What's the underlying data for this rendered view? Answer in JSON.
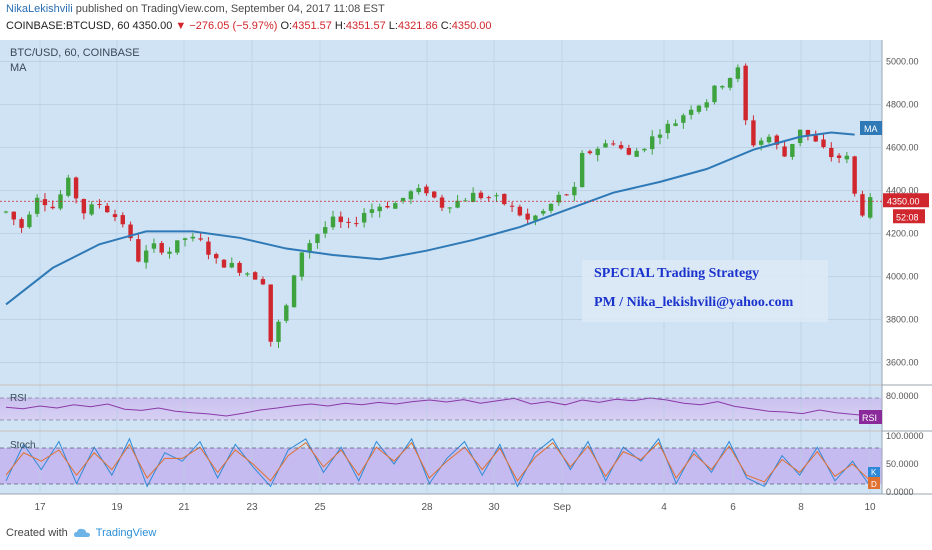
{
  "header": {
    "author": "NikaLekishvili",
    "published_text": "published on TradingView.com, September 04, 2017 11:08 EST",
    "symbol": "COINBASE:BTCUSD, 60",
    "last": "4350.00",
    "change": "−276.05 (−5.97%)",
    "o_label": "O:",
    "o": "4351.57",
    "h_label": "H:",
    "h": "4351.57",
    "l_label": "L:",
    "l": "4321.86",
    "c_label": "C:",
    "c": "4350.00"
  },
  "legend": {
    "symbol": "BTC/USD, 60, COINBASE",
    "ma": "MA"
  },
  "annotation": {
    "line1": "SPECIAL Trading Strategy",
    "line2": "PM / Nika_lekishvili@yahoo.com"
  },
  "badges": {
    "ma": "MA",
    "price": "4350.00",
    "timer": "52:08",
    "rsi": "RSI",
    "stoch_k": "K",
    "stoch_d": "D"
  },
  "footer": {
    "created": "Created with",
    "brand": "TradingView"
  },
  "colors": {
    "bg": "#cfe3f4",
    "up": "#3ea33e",
    "down": "#d0262d",
    "ma": "#2e79b6",
    "rsi": "#8a3aa8",
    "k": "#2e8ad8",
    "d": "#e07030"
  },
  "chart_data": [
    {
      "type": "candlestick",
      "title": "BTC/USD, 60, COINBASE",
      "ylim": [
        3500,
        5100
      ],
      "y_ticks": [
        3600,
        3800,
        4000,
        4200,
        4400,
        4600,
        4800,
        5000
      ],
      "y_tick_labels": [
        "3600.00",
        "3800.00",
        "4000.00",
        "4200.00",
        "4400.00",
        "4600.00",
        "4800.00",
        "5000.00"
      ],
      "x_ticks": [
        "17",
        "19",
        "21",
        "23",
        "25",
        "28",
        "30",
        "Sep",
        "4",
        "6",
        "8",
        "10"
      ],
      "last_price": 4350.0,
      "price_path": [
        {
          "x": 0,
          "y": 4300
        },
        {
          "x": 2,
          "y": 4230
        },
        {
          "x": 4,
          "y": 4380
        },
        {
          "x": 6,
          "y": 4320
        },
        {
          "x": 8,
          "y": 4440
        },
        {
          "x": 10,
          "y": 4300
        },
        {
          "x": 12,
          "y": 4340
        },
        {
          "x": 15,
          "y": 4250
        },
        {
          "x": 17,
          "y": 4080
        },
        {
          "x": 19,
          "y": 4140
        },
        {
          "x": 21,
          "y": 4120
        },
        {
          "x": 23,
          "y": 4180
        },
        {
          "x": 25,
          "y": 4160
        },
        {
          "x": 27,
          "y": 4070
        },
        {
          "x": 29,
          "y": 4050
        },
        {
          "x": 31,
          "y": 4020
        },
        {
          "x": 33,
          "y": 3980
        },
        {
          "x": 34,
          "y": 3700
        },
        {
          "x": 36,
          "y": 3860
        },
        {
          "x": 38,
          "y": 4120
        },
        {
          "x": 40,
          "y": 4200
        },
        {
          "x": 42,
          "y": 4260
        },
        {
          "x": 44,
          "y": 4230
        },
        {
          "x": 46,
          "y": 4300
        },
        {
          "x": 48,
          "y": 4330
        },
        {
          "x": 50,
          "y": 4340
        },
        {
          "x": 52,
          "y": 4390
        },
        {
          "x": 54,
          "y": 4400
        },
        {
          "x": 56,
          "y": 4330
        },
        {
          "x": 58,
          "y": 4350
        },
        {
          "x": 60,
          "y": 4380
        },
        {
          "x": 63,
          "y": 4360
        },
        {
          "x": 65,
          "y": 4320
        },
        {
          "x": 67,
          "y": 4260
        },
        {
          "x": 69,
          "y": 4300
        },
        {
          "x": 71,
          "y": 4370
        },
        {
          "x": 73,
          "y": 4400
        },
        {
          "x": 74,
          "y": 4560
        },
        {
          "x": 76,
          "y": 4600
        },
        {
          "x": 78,
          "y": 4630
        },
        {
          "x": 80,
          "y": 4560
        },
        {
          "x": 82,
          "y": 4610
        },
        {
          "x": 84,
          "y": 4680
        },
        {
          "x": 86,
          "y": 4720
        },
        {
          "x": 88,
          "y": 4790
        },
        {
          "x": 90,
          "y": 4820
        },
        {
          "x": 91,
          "y": 4870
        },
        {
          "x": 93,
          "y": 4930
        },
        {
          "x": 94,
          "y": 4960
        },
        {
          "x": 95,
          "y": 4720
        },
        {
          "x": 96,
          "y": 4620
        },
        {
          "x": 98,
          "y": 4650
        },
        {
          "x": 100,
          "y": 4560
        },
        {
          "x": 102,
          "y": 4690
        },
        {
          "x": 104,
          "y": 4620
        },
        {
          "x": 106,
          "y": 4560
        },
        {
          "x": 108,
          "y": 4550
        },
        {
          "x": 109,
          "y": 4380
        },
        {
          "x": 110,
          "y": 4300
        },
        {
          "x": 111,
          "y": 4350
        }
      ],
      "ma_path": [
        {
          "x": 0,
          "y": 3870
        },
        {
          "x": 6,
          "y": 4040
        },
        {
          "x": 12,
          "y": 4150
        },
        {
          "x": 18,
          "y": 4210
        },
        {
          "x": 24,
          "y": 4210
        },
        {
          "x": 30,
          "y": 4180
        },
        {
          "x": 36,
          "y": 4130
        },
        {
          "x": 42,
          "y": 4100
        },
        {
          "x": 48,
          "y": 4080
        },
        {
          "x": 54,
          "y": 4120
        },
        {
          "x": 60,
          "y": 4170
        },
        {
          "x": 66,
          "y": 4230
        },
        {
          "x": 72,
          "y": 4310
        },
        {
          "x": 78,
          "y": 4390
        },
        {
          "x": 84,
          "y": 4440
        },
        {
          "x": 90,
          "y": 4500
        },
        {
          "x": 96,
          "y": 4590
        },
        {
          "x": 102,
          "y": 4650
        },
        {
          "x": 106,
          "y": 4670
        },
        {
          "x": 109,
          "y": 4660
        }
      ]
    },
    {
      "type": "line",
      "title": "RSI",
      "ylim": [
        0,
        100
      ],
      "y_ticks": [
        80
      ],
      "y_tick_labels": [
        "80.0000"
      ],
      "series": [
        {
          "name": "RSI",
          "values": [
            52,
            48,
            55,
            50,
            58,
            53,
            60,
            47,
            44,
            50,
            42,
            38,
            35,
            30,
            37,
            45,
            50,
            56,
            60,
            55,
            62,
            58,
            64,
            60,
            66,
            70,
            65,
            71,
            62,
            68,
            74,
            60,
            66,
            58,
            70,
            64,
            72,
            68,
            75,
            70,
            62,
            58,
            66,
            54,
            48,
            42,
            40,
            36,
            45,
            38,
            34,
            30
          ]
        }
      ]
    },
    {
      "type": "line",
      "title": "Stoch",
      "ylim": [
        0,
        100
      ],
      "y_ticks": [
        0,
        50,
        100
      ],
      "y_tick_labels": [
        "0.0000",
        "50.0000",
        "100.0000"
      ],
      "series": [
        {
          "name": "K",
          "values": [
            20,
            85,
            40,
            90,
            15,
            80,
            30,
            95,
            10,
            70,
            55,
            90,
            25,
            85,
            45,
            10,
            75,
            95,
            35,
            80,
            20,
            90,
            50,
            95,
            15,
            60,
            90,
            30,
            85,
            10,
            70,
            95,
            40,
            90,
            20,
            80,
            55,
            95,
            15,
            75,
            35,
            90,
            25,
            10,
            65,
            30,
            80,
            20,
            55,
            10
          ]
        },
        {
          "name": "D",
          "values": [
            30,
            70,
            55,
            75,
            30,
            70,
            40,
            85,
            25,
            60,
            60,
            80,
            35,
            75,
            50,
            20,
            65,
            88,
            45,
            75,
            30,
            80,
            55,
            88,
            25,
            55,
            80,
            40,
            78,
            20,
            62,
            88,
            45,
            82,
            28,
            72,
            58,
            88,
            25,
            68,
            40,
            82,
            30,
            18,
            58,
            35,
            72,
            28,
            50,
            20
          ]
        }
      ]
    }
  ]
}
